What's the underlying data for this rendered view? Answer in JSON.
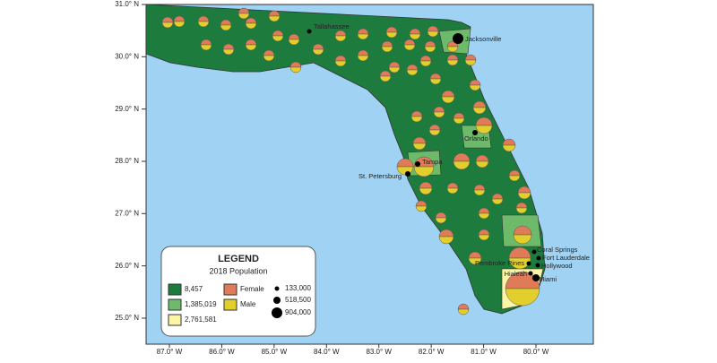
{
  "map": {
    "lat_ticks": [
      {
        "value": 31,
        "label": "31.0° N"
      },
      {
        "value": 30,
        "label": "30.0° N"
      },
      {
        "value": 29,
        "label": "29.0° N"
      },
      {
        "value": 28,
        "label": "28.0° N"
      },
      {
        "value": 27,
        "label": "27.0° N"
      },
      {
        "value": 26,
        "label": "26.0° N"
      },
      {
        "value": 25,
        "label": "25.0° N"
      }
    ],
    "lon_ticks": [
      {
        "value": -87,
        "label": "87.0° W"
      },
      {
        "value": -86,
        "label": "86.0° W"
      },
      {
        "value": -85,
        "label": "85.0° W"
      },
      {
        "value": -84,
        "label": "84.0° W"
      },
      {
        "value": -83,
        "label": "83.0° W"
      },
      {
        "value": -82,
        "label": "82.0° W"
      },
      {
        "value": -81,
        "label": "81.0° W"
      },
      {
        "value": -80,
        "label": "80.0° W"
      }
    ],
    "cities": [
      "Tallahassee",
      "Jacksonville",
      "Orlando",
      "Tampa",
      "St. Petersburg",
      "Coral Springs",
      "Fort Lauderdale",
      "Pembroke Pines",
      "Hollywood",
      "Hialeah",
      "Miami"
    ],
    "legend": {
      "title": "LEGEND",
      "subtitle": "2018 Population",
      "population_classes": [
        "8,457",
        "1,385,019",
        "2,761,581"
      ],
      "pie_classes": [
        "Female",
        "Male"
      ],
      "symbol_sizes": [
        "133,000",
        "518,500",
        "904,000"
      ]
    }
  }
}
